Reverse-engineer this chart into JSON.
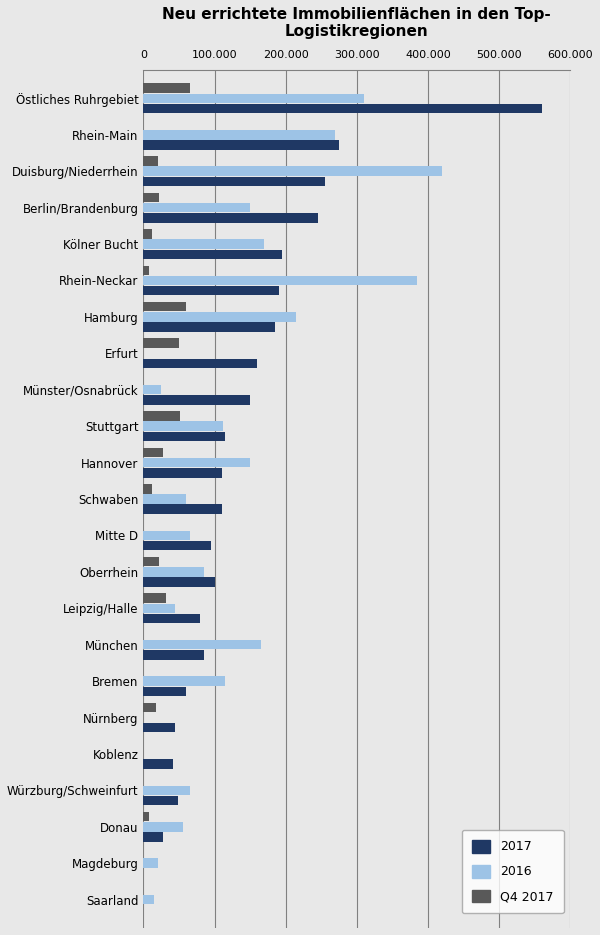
{
  "title": "Neu errichtete Immobilienflächen in den Top-\nLogistikregionen",
  "categories": [
    "Östliches Ruhrgebiet",
    "Rhein-Main",
    "Duisburg/Niederrhein",
    "Berlin/Brandenburg",
    "Kölner Bucht",
    "Rhein-Neckar",
    "Hamburg",
    "Erfurt",
    "Münster/Osnabrück",
    "Stuttgart",
    "Hannover",
    "Schwaben",
    "Mitte D",
    "Oberrhein",
    "Leipzig/Halle",
    "München",
    "Bremen",
    "Nürnberg",
    "Koblenz",
    "Würzburg/Schweinfurt",
    "Donau",
    "Magdeburg",
    "Saarland"
  ],
  "values_2017": [
    560000,
    275000,
    255000,
    245000,
    195000,
    190000,
    185000,
    160000,
    150000,
    115000,
    110000,
    110000,
    95000,
    100000,
    80000,
    85000,
    60000,
    45000,
    42000,
    48000,
    28000,
    0,
    0
  ],
  "values_2016": [
    310000,
    270000,
    420000,
    150000,
    170000,
    385000,
    215000,
    0,
    25000,
    112000,
    150000,
    60000,
    65000,
    85000,
    45000,
    165000,
    115000,
    0,
    0,
    65000,
    55000,
    20000,
    15000
  ],
  "values_q4_2017": [
    65000,
    0,
    20000,
    22000,
    12000,
    8000,
    60000,
    50000,
    0,
    52000,
    28000,
    12000,
    0,
    22000,
    32000,
    0,
    0,
    18000,
    0,
    0,
    8000,
    0,
    0
  ],
  "color_2017": "#1F3864",
  "color_2016": "#9DC3E6",
  "color_q4_2017": "#595959",
  "xlim": [
    0,
    600000
  ],
  "xticks": [
    0,
    100000,
    200000,
    300000,
    400000,
    500000,
    600000
  ],
  "xticklabels": [
    "0",
    "100.000",
    "200.000",
    "300.000",
    "400.000",
    "500.000",
    "600.000"
  ],
  "background_color": "#E8E8E8",
  "grid_color": "#808080",
  "legend_labels": [
    "2017",
    "2016",
    "Q4 2017"
  ]
}
